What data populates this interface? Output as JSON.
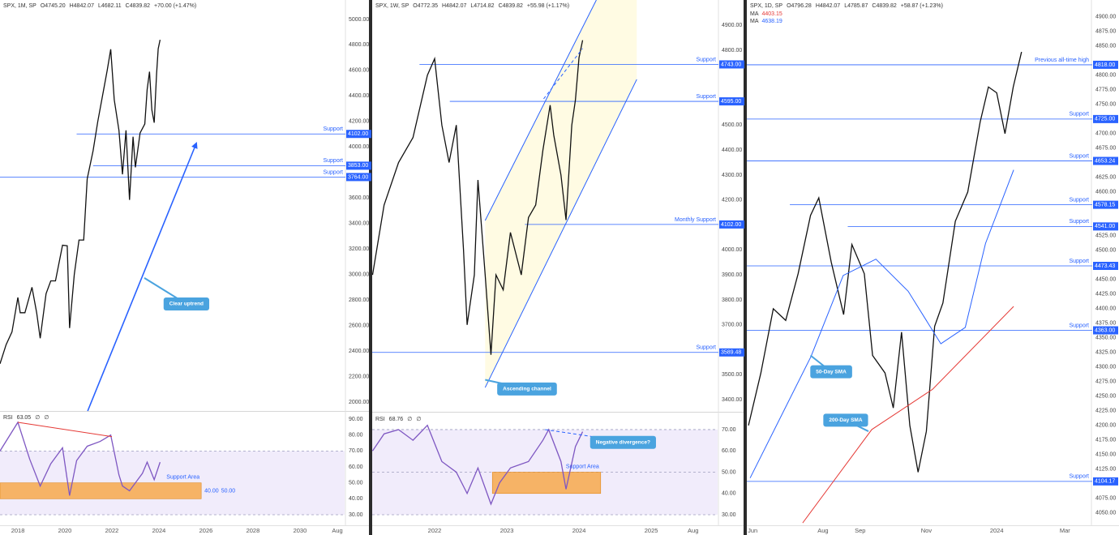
{
  "chart_data": [
    {
      "type": "line",
      "header": [
        "SPX, 1M, SP",
        "O4745.20",
        "H4842.07",
        "L4682.11",
        "C4839.82",
        "+70.00 (+1.47%)"
      ],
      "xlim": [
        2017.24,
        2031.9
      ],
      "ylim": [
        1930,
        5152
      ],
      "xticks": [
        2018,
        2020,
        2022,
        2024,
        2026,
        2028,
        2030,
        {
          "value": 2031.59,
          "label": "Aug"
        }
      ],
      "yticks": [
        {
          "value": 2000,
          "label": "2000.00"
        },
        {
          "value": 2200,
          "label": "2200.00"
        },
        {
          "value": 2400,
          "label": "2400.00"
        },
        {
          "value": 2600,
          "label": "2600.00"
        },
        {
          "value": 2800,
          "label": "2800.00"
        },
        {
          "value": 3000,
          "label": "3000.00"
        },
        {
          "value": 3200,
          "label": "3200.00"
        },
        {
          "value": 3400,
          "label": "3400.00"
        },
        {
          "value": 3600,
          "label": "3600.00"
        },
        {
          "value": 4000,
          "label": "4000.00"
        },
        {
          "value": 4200,
          "label": "4200.00"
        },
        {
          "value": 4400,
          "label": "4400.00"
        },
        {
          "value": 4600,
          "label": "4600.00"
        },
        {
          "value": 4800,
          "label": "4800.00"
        },
        {
          "value": 5000,
          "label": "5000.00"
        }
      ],
      "series": [
        {
          "color": "#111111",
          "x": [
            2017.24,
            2017.5,
            2017.75,
            2018.0,
            2018.1,
            2018.3,
            2018.6,
            2018.8,
            2018.95,
            2019.2,
            2019.4,
            2019.6,
            2019.9,
            2020.1,
            2020.2,
            2020.4,
            2020.6,
            2020.8,
            2020.95,
            2021.2,
            2021.4,
            2021.6,
            2021.8,
            2021.95,
            2022.1,
            2022.3,
            2022.45,
            2022.6,
            2022.75,
            2022.9,
            2023.0,
            2023.2,
            2023.4,
            2023.5,
            2023.6,
            2023.7,
            2023.8,
            2023.9,
            2023.97,
            2024.05
          ],
          "values": [
            2300,
            2450,
            2550,
            2820,
            2700,
            2700,
            2900,
            2700,
            2500,
            2850,
            2950,
            2950,
            3230,
            3225,
            2580,
            3000,
            3270,
            3270,
            3750,
            3970,
            4200,
            4400,
            4600,
            4766,
            4370,
            4130,
            3785,
            4130,
            3585,
            4080,
            3840,
            4110,
            4180,
            4450,
            4590,
            4290,
            4190,
            4570,
            4770,
            4840
          ]
        }
      ],
      "levels": [
        {
          "value": 4102,
          "label": "4102.00",
          "name": "Support",
          "from": 2020.5
        },
        {
          "value": 3853,
          "label": "3853.00",
          "name": "Support",
          "from": 2021.2
        },
        {
          "value": 3764,
          "label": "3764.00",
          "name": "Support"
        }
      ],
      "lines": [
        {
          "x": [
            2020.97,
            2025.59
          ],
          "y": [
            1930,
            4028
          ],
          "color": "#2962ff",
          "arrow": true
        }
      ],
      "annotations": [
        {
          "text": "Clear uptrend",
          "x": 2025.17,
          "y": 2769,
          "to": [
            2023.38,
            2973
          ]
        }
      ]
    },
    {
      "type": "line",
      "header": [
        "RSI",
        "63.05",
        "∅",
        "∅"
      ],
      "ylim": [
        24.9,
        94.6
      ],
      "yticks": [
        {
          "value": 30,
          "label": "30.00"
        },
        {
          "value": 40,
          "label": "40.00"
        },
        {
          "value": 50,
          "label": "50.00"
        },
        {
          "value": 60,
          "label": "60.00"
        },
        {
          "value": 70,
          "label": "70.00"
        },
        {
          "value": 80,
          "label": "80.00"
        },
        {
          "value": 90,
          "label": "90.00"
        }
      ],
      "zone": [
        30,
        70
      ],
      "zone_color": "#f1ecfb",
      "guides": [
        70,
        30
      ],
      "band": {
        "range": [
          40,
          50
        ],
        "x": [
          2017.24,
          2025.8
        ],
        "label": "Support Area",
        "range_labels": [
          "40.00",
          "50.00"
        ],
        "color": "#f7a94b"
      },
      "series": [
        {
          "color": "#7e57c2",
          "x": [
            2017.24,
            2018.0,
            2018.5,
            2018.95,
            2019.4,
            2019.9,
            2020.2,
            2020.5,
            2020.95,
            2021.5,
            2021.95,
            2022.3,
            2022.45,
            2022.75,
            2023.0,
            2023.3,
            2023.5,
            2023.8,
            2024.05
          ],
          "values": [
            70,
            88,
            65,
            48,
            62,
            72,
            42,
            64,
            73,
            76,
            80,
            55,
            48,
            45,
            50,
            56,
            63,
            52,
            63
          ]
        }
      ],
      "lines": [
        {
          "x": [
            2018.0,
            2022.0
          ],
          "y": [
            88,
            79
          ],
          "color": "#e53935"
        }
      ]
    },
    {
      "type": "line",
      "header": [
        "SPX, 1W, SP",
        "O4772.35",
        "H4842.07",
        "L4714.82",
        "C4839.82",
        "+55.98 (+1.17%)"
      ],
      "xlim": [
        2021.135,
        2025.92
      ],
      "ylim": [
        3355,
        5001
      ],
      "xticks": [
        2022,
        2023,
        2024,
        2025,
        {
          "value": 2025.58,
          "label": "Aug"
        }
      ],
      "yticks": [
        {
          "value": 3400,
          "label": "3400.00"
        },
        {
          "value": 3500,
          "label": "3500.00"
        },
        {
          "value": 3700,
          "label": "3700.00"
        },
        {
          "value": 3800,
          "label": "3800.00"
        },
        {
          "value": 3900,
          "label": "3900.00"
        },
        {
          "value": 4000,
          "label": "4000.00"
        },
        {
          "value": 4200,
          "label": "4200.00"
        },
        {
          "value": 4300,
          "label": "4300.00"
        },
        {
          "value": 4400,
          "label": "4400.00"
        },
        {
          "value": 4500,
          "label": "4500.00"
        },
        {
          "value": 4800,
          "label": "4800.00"
        },
        {
          "value": 4900,
          "label": "4900.00"
        }
      ],
      "channel": {
        "x": [
          2022.7,
          2022.7,
          2024.24,
          2024.8,
          2024.8
        ],
        "y": [
          3449,
          4118,
          5001,
          5001,
          4683
        ],
        "color": "#fffbe3"
      },
      "series": [
        {
          "color": "#111111",
          "x": [
            2021.14,
            2021.3,
            2021.5,
            2021.7,
            2021.9,
            2022.0,
            2022.1,
            2022.2,
            2022.3,
            2022.4,
            2022.45,
            2022.55,
            2022.6,
            2022.7,
            2022.78,
            2022.85,
            2022.95,
            2023.05,
            2023.2,
            2023.3,
            2023.4,
            2023.5,
            2023.6,
            2023.65,
            2023.75,
            2023.82,
            2023.9,
            2023.95,
            2024.0,
            2024.05
          ],
          "values": [
            3900,
            4180,
            4350,
            4450,
            4700,
            4766,
            4500,
            4350,
            4500,
            4000,
            3700,
            3900,
            4280,
            3900,
            3580,
            3900,
            3840,
            4070,
            3900,
            4130,
            4180,
            4400,
            4580,
            4460,
            4300,
            4120,
            4500,
            4600,
            4770,
            4840
          ]
        }
      ],
      "levels": [
        {
          "value": 4743,
          "label": "4743.00",
          "name": "Support",
          "from": 2021.79
        },
        {
          "value": 4595,
          "label": "4595.00",
          "name": "Support",
          "from": 2022.21
        },
        {
          "value": 4102,
          "label": "4102.00",
          "name": "Monthly Support",
          "from": 2023.25
        },
        {
          "value": 3589.48,
          "label": "3589.48",
          "name": "Support"
        }
      ],
      "lines": [
        {
          "x": [
            2022.7,
            2024.24
          ],
          "y": [
            4118,
            5001
          ],
          "color": "#2962ff"
        },
        {
          "x": [
            2022.7,
            2024.8
          ],
          "y": [
            3449,
            4683
          ],
          "color": "#2962ff"
        },
        {
          "x": [
            2023.51,
            2024.05
          ],
          "y": [
            4605,
            4807
          ],
          "color": "#2962ff",
          "dash": true
        }
      ],
      "annotations": [
        {
          "text": "Ascending channel",
          "x": 2023.28,
          "y": 3443,
          "to": [
            2022.7,
            3480
          ]
        }
      ]
    },
    {
      "type": "line",
      "header": [
        "RSI",
        "68.76",
        "∅",
        "∅"
      ],
      "ylim": [
        26.2,
        77.6
      ],
      "yticks": [
        {
          "value": 30,
          "label": "30.00"
        },
        {
          "value": 40,
          "label": "40.00"
        },
        {
          "value": 50,
          "label": "50.00"
        },
        {
          "value": 60,
          "label": "60.00"
        },
        {
          "value": 70,
          "label": "70.00"
        }
      ],
      "zone": [
        30,
        70
      ],
      "zone_color": "#f1ecfb",
      "guides": [
        70,
        50,
        30
      ],
      "band": {
        "range": [
          40,
          50
        ],
        "x": [
          2022.8,
          2024.3
        ],
        "label": "Support Area",
        "color": "#f7a94b"
      },
      "series": [
        {
          "color": "#7e57c2",
          "x": [
            2021.14,
            2021.3,
            2021.5,
            2021.7,
            2021.9,
            2022.1,
            2022.3,
            2022.45,
            2022.6,
            2022.78,
            2022.9,
            2023.05,
            2023.3,
            2023.5,
            2023.58,
            2023.75,
            2023.82,
            2023.95,
            2024.05
          ],
          "values": [
            60,
            68,
            70,
            65,
            72,
            55,
            50,
            40,
            52,
            35,
            45,
            52,
            55,
            65,
            70,
            55,
            42,
            62,
            69
          ]
        }
      ],
      "lines": [
        {
          "x": [
            2023.53,
            2024.29
          ],
          "y": [
            70,
            66.2
          ],
          "color": "#2962ff",
          "dash": true
        }
      ],
      "annotations": [
        {
          "text": "Negative divergence?",
          "x": 2024.61,
          "y": 64,
          "to": [
            2024.29,
            66.2
          ]
        }
      ]
    },
    {
      "type": "line",
      "header": [
        "SPX, 1D, SP",
        "O4796.28",
        "H4842.07",
        "L4785.87",
        "C4839.82",
        "+58.87 (+1.23%)"
      ],
      "legend": [
        {
          "name": "MA",
          "value": "4403.15",
          "color": "#e53935"
        },
        {
          "name": "MA",
          "value": "4638.19",
          "color": "#2962ff"
        }
      ],
      "xlim": [
        2023.396,
        2024.227
      ],
      "ylim": [
        4029,
        4929
      ],
      "xticks": [
        {
          "value": 2023.41,
          "label": "Jun"
        },
        {
          "value": 2023.58,
          "label": "Aug"
        },
        {
          "value": 2023.67,
          "label": "Sep"
        },
        {
          "value": 2023.83,
          "label": "Nov"
        },
        2024,
        {
          "value": 2024.165,
          "label": "Mar"
        }
      ],
      "yticks": [
        {
          "value": 4050,
          "label": "4050.00"
        },
        {
          "value": 4075,
          "label": "4075.00"
        },
        {
          "value": 4125,
          "label": "4125.00"
        },
        {
          "value": 4150,
          "label": "4150.00"
        },
        {
          "value": 4175,
          "label": "4175.00"
        },
        {
          "value": 4200,
          "label": "4200.00"
        },
        {
          "value": 4225,
          "label": "4225.00"
        },
        {
          "value": 4250,
          "label": "4250.00"
        },
        {
          "value": 4275,
          "label": "4275.00"
        },
        {
          "value": 4300,
          "label": "4300.00"
        },
        {
          "value": 4325,
          "label": "4325.00"
        },
        {
          "value": 4350,
          "label": "4350.00"
        },
        {
          "value": 4375,
          "label": "4375.00"
        },
        {
          "value": 4400,
          "label": "4400.00"
        },
        {
          "value": 4425,
          "label": "4425.00"
        },
        {
          "value": 4450,
          "label": "4450.00"
        },
        {
          "value": 4500,
          "label": "4500.00"
        },
        {
          "value": 4525,
          "label": "4525.00"
        },
        {
          "value": 4600,
          "label": "4600.00"
        },
        {
          "value": 4625,
          "label": "4625.00"
        },
        {
          "value": 4675,
          "label": "4675.00"
        },
        {
          "value": 4700,
          "label": "4700.00"
        },
        {
          "value": 4750,
          "label": "4750.00"
        },
        {
          "value": 4775,
          "label": "4775.00"
        },
        {
          "value": 4800,
          "label": "4800.00"
        },
        {
          "value": 4850,
          "label": "4850.00"
        },
        {
          "value": 4875,
          "label": "4875.00"
        },
        {
          "value": 4900,
          "label": "4900.00"
        }
      ],
      "series": [
        {
          "color": "#111111",
          "x": [
            2023.4,
            2023.43,
            2023.46,
            2023.49,
            2023.52,
            2023.55,
            2023.57,
            2023.6,
            2023.63,
            2023.65,
            2023.68,
            2023.7,
            2023.73,
            2023.75,
            2023.77,
            2023.79,
            2023.81,
            2023.83,
            2023.85,
            2023.87,
            2023.9,
            2023.93,
            2023.96,
            2023.98,
            2024.0,
            2024.02,
            2024.04,
            2024.06
          ],
          "values": [
            4200,
            4290,
            4400,
            4380,
            4460,
            4560,
            4590,
            4480,
            4390,
            4510,
            4460,
            4320,
            4290,
            4230,
            4360,
            4200,
            4120,
            4190,
            4370,
            4410,
            4550,
            4600,
            4720,
            4780,
            4770,
            4700,
            4780,
            4840
          ]
        },
        {
          "color": "#2962ff",
          "x": [
            2023.404,
            2023.551,
            2023.629,
            2023.708,
            2023.786,
            2023.865,
            2023.924,
            2023.973,
            2024.041
          ],
          "values": [
            4110,
            4318,
            4457,
            4485,
            4430,
            4340,
            4368,
            4512,
            4638
          ]
        },
        {
          "color": "#e53935",
          "x": [
            2023.531,
            2023.698,
            2023.845,
            2024.041
          ],
          "values": [
            4033,
            4193,
            4262,
            4404
          ]
        }
      ],
      "levels": [
        {
          "value": 4818,
          "label": "4818.00",
          "name": "Previous all-time high"
        },
        {
          "value": 4725,
          "label": "4725.00",
          "name": "Support"
        },
        {
          "value": 4653.24,
          "label": "4653.24",
          "name": "Support"
        },
        {
          "value": 4578.15,
          "label": "4578.15",
          "name": "Support",
          "from": 2023.5
        },
        {
          "value": 4541,
          "label": "4541.00",
          "name": "Support",
          "from": 2023.64
        },
        {
          "value": 4473.43,
          "label": "4473.43",
          "name": "Support"
        },
        {
          "value": 4363,
          "label": "4363.00",
          "name": "Support"
        },
        {
          "value": 4104.17,
          "label": "4104.17",
          "name": "Support"
        }
      ],
      "annotations": [
        {
          "text": "50-Day SMA",
          "x": 2023.6,
          "y": 4292,
          "to": [
            2023.55,
            4320
          ]
        },
        {
          "text": "200-Day SMA",
          "x": 2023.635,
          "y": 4209,
          "to": [
            2023.69,
            4190
          ]
        }
      ]
    }
  ]
}
